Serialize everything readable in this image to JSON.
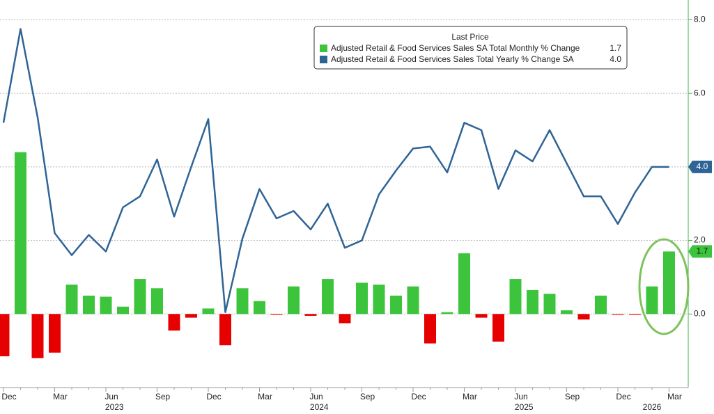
{
  "chart_data": {
    "type": "bar_line",
    "legend_title": "Last Price",
    "categories": [
      "Dec",
      null,
      null,
      "Mar",
      null,
      null,
      "Jun",
      null,
      null,
      "Sep",
      null,
      null,
      "Dec",
      null,
      null,
      "Mar",
      null,
      null,
      "Jun",
      null,
      null,
      "Sep",
      null,
      null,
      "Dec",
      null,
      null,
      "Mar",
      null,
      null,
      "Jun",
      null,
      null,
      "Sep",
      null,
      null,
      "Dec",
      null,
      null,
      "Mar"
    ],
    "year_labels": [
      "2023",
      "2024",
      "2025",
      "2026"
    ],
    "series": [
      {
        "name": "Adjusted Retail & Food Services Sales SA Total Monthly % Change",
        "type": "bar",
        "color": "#3cc43c",
        "negative_color": "#e60000",
        "values": [
          -1.15,
          4.4,
          -1.2,
          -1.05,
          0.8,
          0.5,
          0.47,
          0.2,
          0.95,
          0.7,
          -0.45,
          -0.1,
          0.15,
          -0.85,
          0.7,
          0.35,
          -0.02,
          0.75,
          -0.05,
          0.95,
          -0.25,
          0.85,
          0.8,
          0.5,
          0.75,
          -0.8,
          0.05,
          1.65,
          -0.1,
          -0.75,
          0.95,
          0.65,
          0.55,
          0.1,
          -0.15,
          0.5,
          -0.02,
          -0.02,
          0.75,
          1.7
        ]
      },
      {
        "name": "Adjusted Retail & Food Services Sales Total Yearly % Change SA",
        "type": "line",
        "color": "#2f6496",
        "values": [
          5.2,
          7.75,
          5.35,
          2.2,
          1.6,
          2.15,
          1.7,
          2.9,
          3.2,
          4.2,
          2.65,
          4.0,
          5.3,
          0.05,
          2.05,
          3.4,
          2.6,
          2.8,
          2.3,
          3.0,
          1.8,
          2.0,
          3.25,
          3.9,
          4.5,
          4.55,
          3.85,
          5.2,
          5.0,
          3.4,
          4.45,
          4.15,
          5.0,
          4.1,
          3.2,
          3.2,
          2.45,
          3.3,
          4.0,
          4.0
        ],
        "value_labels": [
          null,
          null,
          null,
          null,
          null,
          null,
          null,
          null,
          null,
          null,
          null,
          null,
          null,
          null,
          null,
          null,
          null,
          null,
          null,
          null,
          null,
          null,
          null,
          null,
          null,
          null,
          null,
          null,
          null,
          null,
          null,
          null,
          null,
          null,
          null,
          null,
          null,
          null,
          null,
          "4.0"
        ]
      }
    ],
    "ylim": [
      -2.0,
      8.5
    ],
    "yticks": [
      {
        "value": 0,
        "label": "0.0"
      },
      {
        "value": 2,
        "label": "2.0"
      },
      {
        "value": 4,
        "label": "4.0"
      },
      {
        "value": 6,
        "label": "6.0"
      },
      {
        "value": 8,
        "label": "8.0"
      }
    ],
    "grid": true
  }
}
